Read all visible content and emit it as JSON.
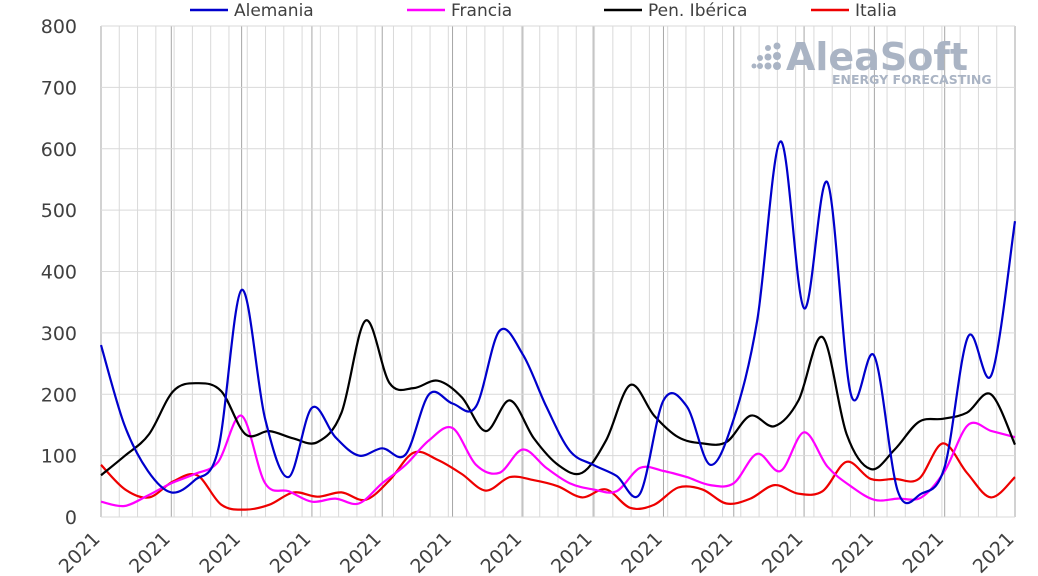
{
  "chart_data": {
    "type": "line",
    "title": "",
    "xlabel": "",
    "ylabel": "",
    "ylim": [
      0,
      800
    ],
    "yticks": [
      "0",
      "100",
      "200",
      "300",
      "400",
      "500",
      "600",
      "700",
      "800"
    ],
    "x_tick_labels": [
      "2021",
      "2021",
      "2021",
      "2021",
      "2021",
      "2021",
      "2021",
      "2021",
      "2021",
      "2021",
      "2021",
      "2021",
      "2021",
      "2021"
    ],
    "grid": true,
    "legend_position": "top",
    "watermark": {
      "name": "AleaSoft",
      "tagline": "ENERGY FORECASTING"
    },
    "series": [
      {
        "name": "Alemania",
        "color": "#0000cc",
        "values": [
          280,
          150,
          75,
          40,
          60,
          110,
          370,
          160,
          65,
          178,
          130,
          100,
          112,
          102,
          200,
          185,
          180,
          303,
          265,
          180,
          108,
          85,
          67,
          38,
          190,
          180,
          85,
          160,
          320,
          612,
          340,
          545,
          200,
          262,
          42,
          38,
          82,
          294,
          232,
          482
        ]
      },
      {
        "name": "Francia",
        "color": "#ff00ff",
        "values": [
          25,
          18,
          35,
          55,
          70,
          90,
          165,
          55,
          42,
          25,
          30,
          22,
          55,
          85,
          125,
          145,
          85,
          72,
          110,
          80,
          55,
          45,
          42,
          80,
          75,
          65,
          52,
          55,
          103,
          75,
          138,
          82,
          50,
          28,
          30,
          32,
          75,
          150,
          140,
          130
        ]
      },
      {
        "name": "Pen. Ibérica",
        "color": "#000000",
        "values": [
          68,
          100,
          135,
          205,
          218,
          205,
          135,
          140,
          128,
          122,
          170,
          320,
          218,
          210,
          222,
          195,
          140,
          190,
          128,
          85,
          72,
          125,
          215,
          165,
          130,
          120,
          122,
          165,
          148,
          190,
          293,
          135,
          78,
          110,
          155,
          160,
          170,
          200,
          118
        ]
      },
      {
        "name": "Italia",
        "color": "#ee0000",
        "values": [
          85,
          45,
          32,
          58,
          68,
          20,
          12,
          20,
          40,
          33,
          40,
          28,
          60,
          105,
          93,
          70,
          43,
          65,
          60,
          50,
          32,
          45,
          15,
          20,
          48,
          45,
          22,
          30,
          52,
          38,
          42,
          90,
          62,
          62,
          62,
          120,
          72,
          32,
          65
        ]
      }
    ]
  }
}
